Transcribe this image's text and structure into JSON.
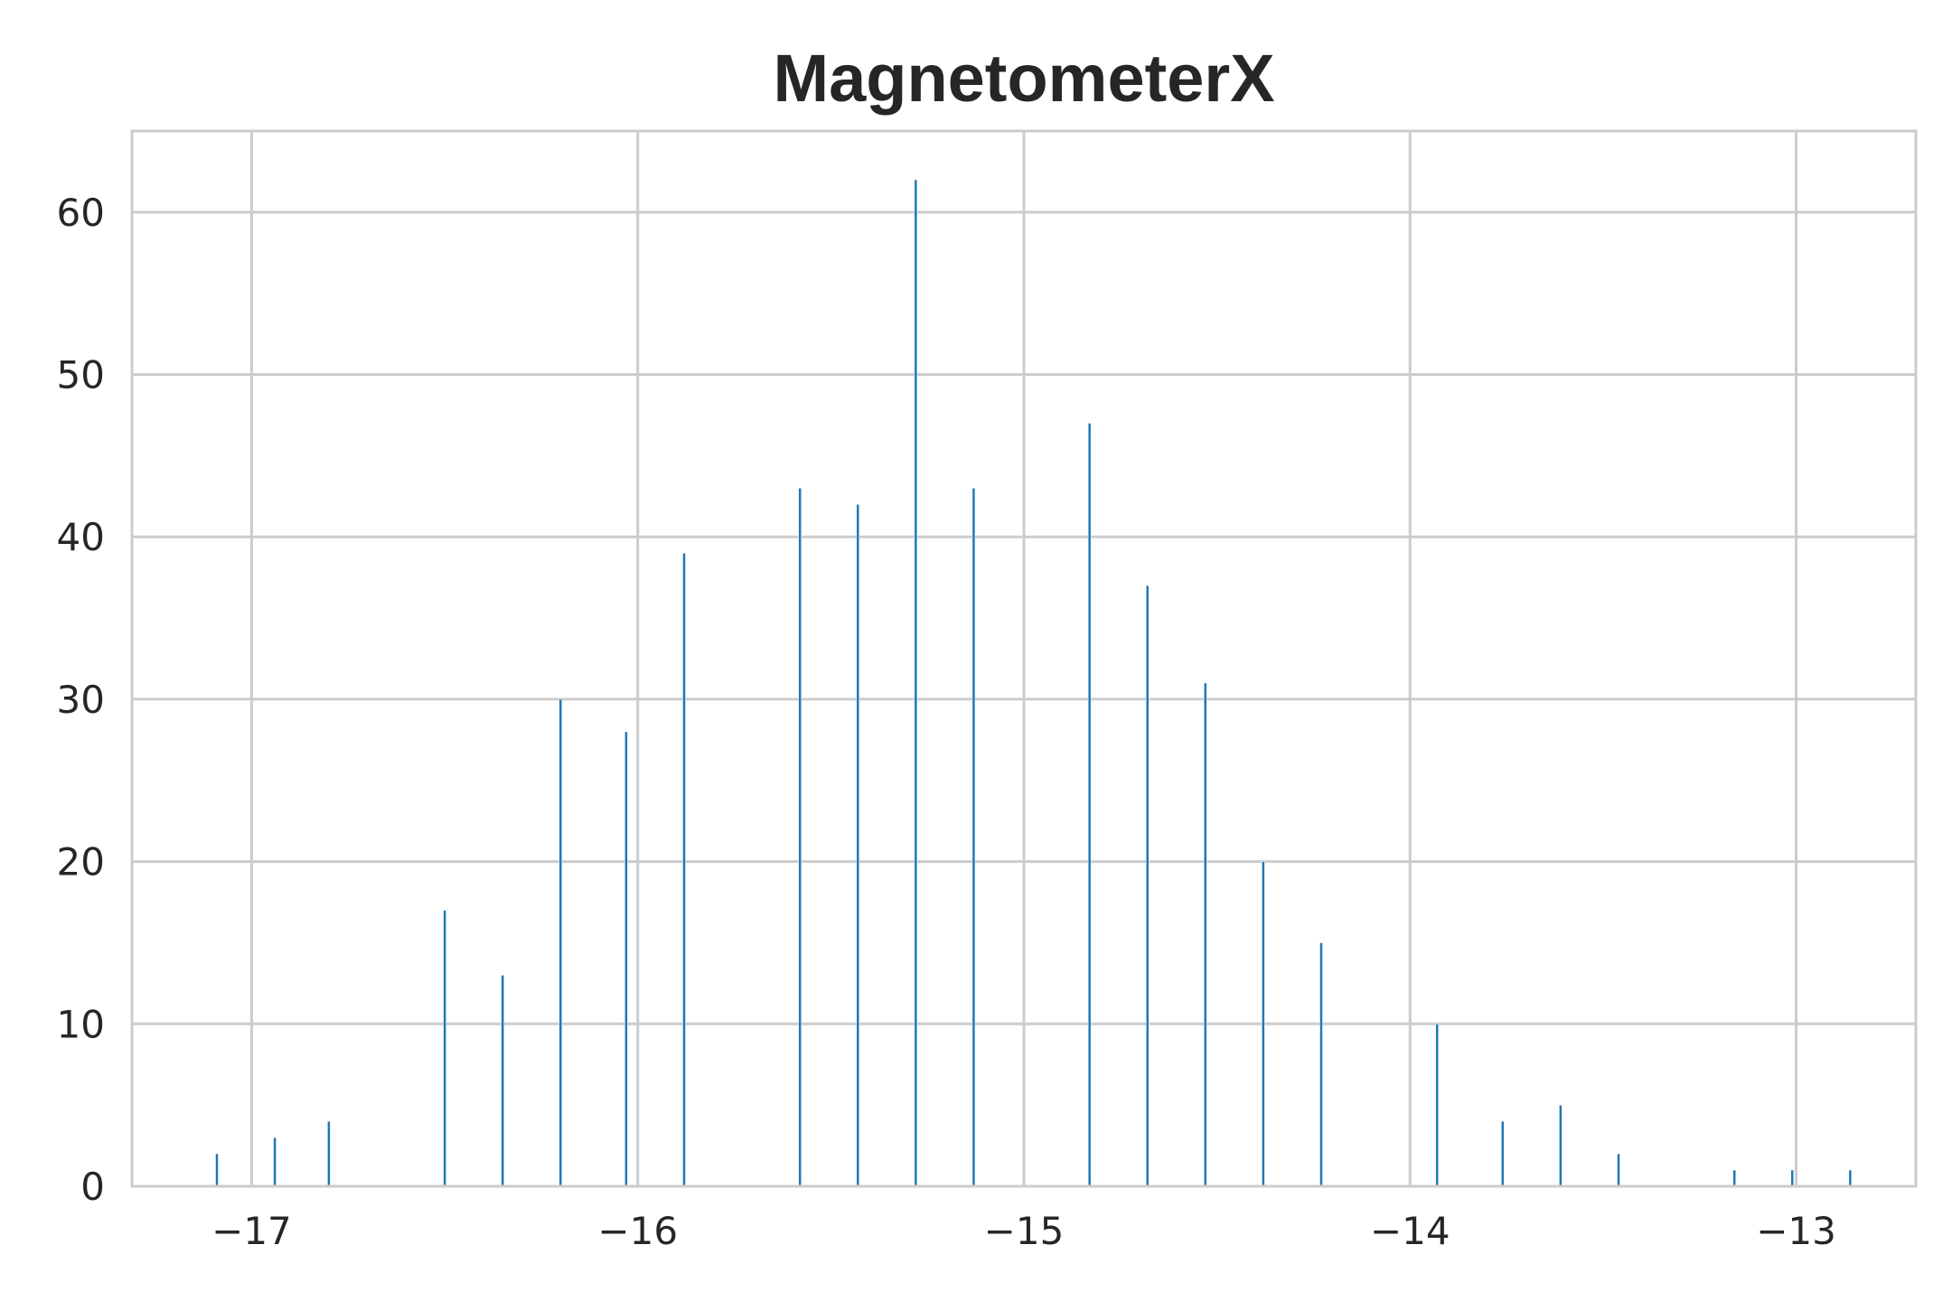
{
  "chart_data": {
    "type": "bar",
    "title": "MagnetometerX",
    "xlabel": "",
    "ylabel": "",
    "xlim": [
      -17.31,
      -12.69
    ],
    "ylim": [
      0,
      65
    ],
    "xticks": [
      -17,
      -16,
      -15,
      -14,
      -13
    ],
    "xtick_labels": [
      "−17",
      "−16",
      "−15",
      "−14",
      "−13"
    ],
    "yticks": [
      0,
      10,
      20,
      30,
      40,
      50,
      60
    ],
    "ytick_labels": [
      "0",
      "10",
      "20",
      "30",
      "40",
      "50",
      "60"
    ],
    "grid": true,
    "color": "#1f77b4",
    "bin_width": 0.01,
    "x": [
      -17.09,
      -16.94,
      -16.8,
      -16.5,
      -16.35,
      -16.2,
      -16.03,
      -15.88,
      -15.58,
      -15.43,
      -15.28,
      -15.13,
      -14.83,
      -14.68,
      -14.53,
      -14.38,
      -14.23,
      -13.93,
      -13.76,
      -13.61,
      -13.46,
      -13.16,
      -13.01,
      -12.86
    ],
    "values": [
      2,
      3,
      4,
      17,
      13,
      30,
      28,
      39,
      43,
      42,
      62,
      43,
      47,
      37,
      31,
      20,
      15,
      10,
      4,
      5,
      2,
      1,
      1,
      1
    ]
  }
}
